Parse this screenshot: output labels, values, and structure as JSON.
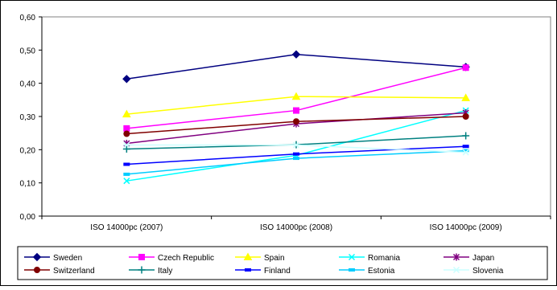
{
  "chart_data": {
    "type": "line",
    "categories": [
      "ISO 14000pc (2007)",
      "ISO 14000pc (2008)",
      "ISO 14000pc (2009)"
    ],
    "ylim": [
      0,
      0.6
    ],
    "yticks": [
      "0,00",
      "0,10",
      "0,20",
      "0,30",
      "0,40",
      "0,50",
      "0,60"
    ],
    "grid": false,
    "legend_position": "bottom",
    "series": [
      {
        "name": "Sweden",
        "values": [
          0.413,
          0.487,
          0.449
        ],
        "color": "#000080",
        "marker": "diamond"
      },
      {
        "name": "Czech Republic",
        "values": [
          0.264,
          0.318,
          0.447
        ],
        "color": "#FF00FF",
        "marker": "square"
      },
      {
        "name": "Spain",
        "values": [
          0.307,
          0.36,
          0.356
        ],
        "color": "#FFFF00",
        "marker": "triangle"
      },
      {
        "name": "Romania",
        "values": [
          0.106,
          0.183,
          0.318
        ],
        "color": "#00FFFF",
        "marker": "x"
      },
      {
        "name": "Japan",
        "values": [
          0.219,
          0.278,
          0.311
        ],
        "color": "#800080",
        "marker": "star"
      },
      {
        "name": "Switzerland",
        "values": [
          0.248,
          0.285,
          0.3
        ],
        "color": "#800000",
        "marker": "circle"
      },
      {
        "name": "Italy",
        "values": [
          0.202,
          0.215,
          0.242
        ],
        "color": "#008080",
        "marker": "plus"
      },
      {
        "name": "Finland",
        "values": [
          0.156,
          0.187,
          0.21
        ],
        "color": "#0000FF",
        "marker": "dash"
      },
      {
        "name": "Estonia",
        "values": [
          0.126,
          0.174,
          0.197
        ],
        "color": "#00CCFF",
        "marker": "dash"
      },
      {
        "name": "Slovenia",
        "values": [
          0.214,
          0.214,
          0.192
        ],
        "color": "#CCFFFF",
        "marker": "cross"
      }
    ]
  }
}
